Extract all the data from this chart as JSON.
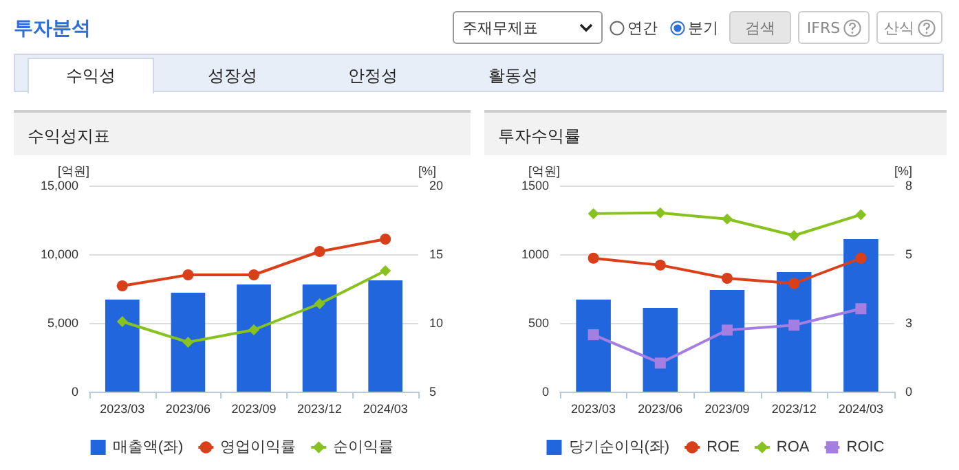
{
  "chart_data": [
    {
      "type": "other",
      "title": "투자분석",
      "annotations": [
        "주재무제표",
        "연간",
        "분기",
        "검색",
        "IFRS",
        "산식",
        "수익성",
        "성장성",
        "안정성",
        "활동성"
      ]
    },
    {
      "type": "bar",
      "title": "수익성지표",
      "categories": [
        "2023/03",
        "2023/06",
        "2023/09",
        "2023/12",
        "2024/03"
      ],
      "ylabel": "[억원]",
      "y2label": "[%]",
      "ylim": [
        0,
        15000
      ],
      "yticks": [
        0,
        {
          "value": 5000,
          "label": "5,000"
        },
        {
          "value": 10000,
          "label": "10,000"
        },
        {
          "value": 15000,
          "label": "15,000"
        }
      ],
      "y2lim": [
        5,
        20
      ],
      "y2ticks": [
        5,
        10,
        15,
        20
      ],
      "grid": "y",
      "legend": "bottom",
      "series": [
        {
          "name": "매출액(좌)",
          "type": "bar",
          "color": "#2266dd",
          "values": [
            6700,
            7200,
            7800,
            7800,
            8100
          ]
        },
        {
          "name": "영업이익률",
          "type": "line",
          "axis": "y2",
          "marker": "circle",
          "color": "#d9401a",
          "values": [
            12.7,
            13.5,
            13.5,
            15.2,
            16.1
          ]
        },
        {
          "name": "순이익률",
          "type": "line",
          "axis": "y2",
          "marker": "diamond",
          "color": "#88c21e",
          "values": [
            10.1,
            8.6,
            9.5,
            11.4,
            13.8
          ]
        }
      ]
    },
    {
      "type": "bar",
      "title": "투자수익률",
      "categories": [
        "2023/03",
        "2023/06",
        "2023/09",
        "2023/12",
        "2024/03"
      ],
      "ylabel": "[억원]",
      "y2label": "[%]",
      "ylim": [
        0,
        1500
      ],
      "yticks": [
        0,
        500,
        1000,
        1500
      ],
      "y2lim": [
        0,
        8
      ],
      "y2ticks": [
        0,
        {
          "value": 2.667,
          "label": "3"
        },
        {
          "value": 5.333,
          "label": "5"
        },
        8
      ],
      "grid": "y",
      "legend": "bottom",
      "series": [
        {
          "name": "당기순이익(좌)",
          "type": "bar",
          "color": "#2266dd",
          "values": [
            670,
            610,
            740,
            870,
            1110
          ]
        },
        {
          "name": "ROE",
          "type": "line",
          "axis": "y2",
          "marker": "circle",
          "color": "#d9401a",
          "values": [
            5.18,
            4.91,
            4.4,
            4.2,
            5.18
          ]
        },
        {
          "name": "ROA",
          "type": "line",
          "axis": "y2",
          "marker": "diamond",
          "color": "#88c21e",
          "values": [
            6.91,
            6.94,
            6.7,
            6.06,
            6.87
          ]
        },
        {
          "name": "ROIC",
          "type": "line",
          "axis": "y2",
          "marker": "square",
          "color": "#a47ee0",
          "values": [
            2.21,
            1.11,
            2.39,
            2.58,
            3.22
          ]
        }
      ]
    }
  ]
}
